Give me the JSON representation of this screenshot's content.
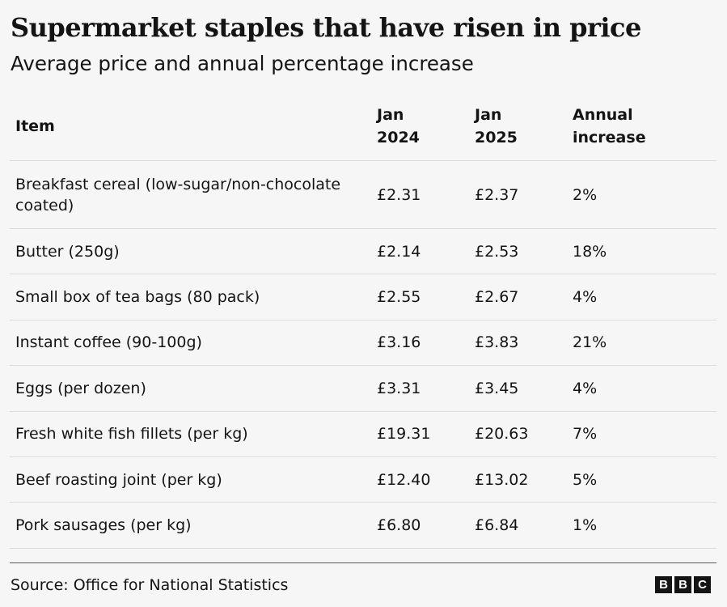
{
  "title": "Supermarket staples that have risen in price",
  "subtitle": "Average price and annual percentage increase",
  "chart_data": {
    "type": "table",
    "columns": [
      "Item",
      "Jan\n2024",
      "Jan\n2025",
      "Annual\nincrease"
    ],
    "rows": [
      [
        "Breakfast cereal (low-sugar/non-chocolate coated)",
        "£2.31",
        "£2.37",
        "2%"
      ],
      [
        "Butter (250g)",
        "£2.14",
        "£2.53",
        "18%"
      ],
      [
        "Small box of tea bags (80 pack)",
        "£2.55",
        "£2.67",
        "4%"
      ],
      [
        "Instant coffee (90-100g)",
        "£3.16",
        "£3.83",
        "21%"
      ],
      [
        "Eggs (per dozen)",
        "£3.31",
        "£3.45",
        "4%"
      ],
      [
        "Fresh white fish fillets (per kg)",
        "£19.31",
        "£20.63",
        "7%"
      ],
      [
        "Beef roasting joint (per kg)",
        "£12.40",
        "£13.02",
        "5%"
      ],
      [
        "Pork sausages (per kg)",
        "£6.80",
        "£6.84",
        "1%"
      ]
    ]
  },
  "footer": {
    "source": "Source: Office for National Statistics",
    "logo_letters": [
      "B",
      "B",
      "C"
    ]
  }
}
